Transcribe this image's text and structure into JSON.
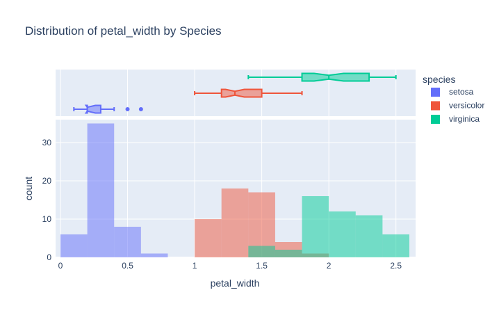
{
  "chart_data": {
    "type": "histogram",
    "title": "Distribution of petal_width by Species",
    "xlabel": "petal_width",
    "ylabel": "count",
    "xlim": [
      0,
      2.6
    ],
    "ylim": [
      0,
      36
    ],
    "x_ticks": [
      0,
      0.5,
      1,
      1.5,
      2,
      2.5
    ],
    "x_tick_labels": [
      "0",
      "0.5",
      "1",
      "1.5",
      "2",
      "2.5"
    ],
    "y_ticks": [
      0,
      10,
      20,
      30
    ],
    "y_tick_labels": [
      "0",
      "10",
      "20",
      "30"
    ],
    "grid": true,
    "legend": {
      "title": "species",
      "position": "right"
    },
    "marginal": "box",
    "series": [
      {
        "name": "setosa",
        "color": "#636efa",
        "bins": [
          {
            "x0": 0.0,
            "x1": 0.2,
            "count": 6
          },
          {
            "x0": 0.2,
            "x1": 0.4,
            "count": 35
          },
          {
            "x0": 0.4,
            "x1": 0.6,
            "count": 8
          },
          {
            "x0": 0.6,
            "x1": 0.8,
            "count": 1
          }
        ],
        "box": {
          "min": 0.1,
          "q1": 0.2,
          "median": 0.2,
          "q3": 0.3,
          "max": 0.4,
          "notch_lo": 0.19,
          "notch_hi": 0.26,
          "outliers": [
            0.5,
            0.6
          ]
        }
      },
      {
        "name": "versicolor",
        "color": "#ef553b",
        "bins": [
          {
            "x0": 1.0,
            "x1": 1.2,
            "count": 10
          },
          {
            "x0": 1.2,
            "x1": 1.4,
            "count": 18
          },
          {
            "x0": 1.4,
            "x1": 1.6,
            "count": 17
          },
          {
            "x0": 1.6,
            "x1": 1.8,
            "count": 4
          },
          {
            "x0": 1.8,
            "x1": 2.0,
            "count": 1
          }
        ],
        "box": {
          "min": 1.0,
          "q1": 1.2,
          "median": 1.3,
          "q3": 1.5,
          "max": 1.8,
          "notch_lo": 1.23,
          "notch_hi": 1.37,
          "outliers": []
        }
      },
      {
        "name": "virginica",
        "color": "#00cc96",
        "bins": [
          {
            "x0": 1.4,
            "x1": 1.6,
            "count": 3
          },
          {
            "x0": 1.6,
            "x1": 1.8,
            "count": 2
          },
          {
            "x0": 1.8,
            "x1": 2.0,
            "count": 16
          },
          {
            "x0": 2.0,
            "x1": 2.2,
            "count": 12
          },
          {
            "x0": 2.2,
            "x1": 2.4,
            "count": 11
          },
          {
            "x0": 2.4,
            "x1": 2.6,
            "count": 6
          }
        ],
        "box": {
          "min": 1.4,
          "q1": 1.8,
          "median": 2.0,
          "q3": 2.3,
          "max": 2.5,
          "notch_lo": 1.89,
          "notch_hi": 2.11,
          "outliers": []
        }
      }
    ]
  }
}
